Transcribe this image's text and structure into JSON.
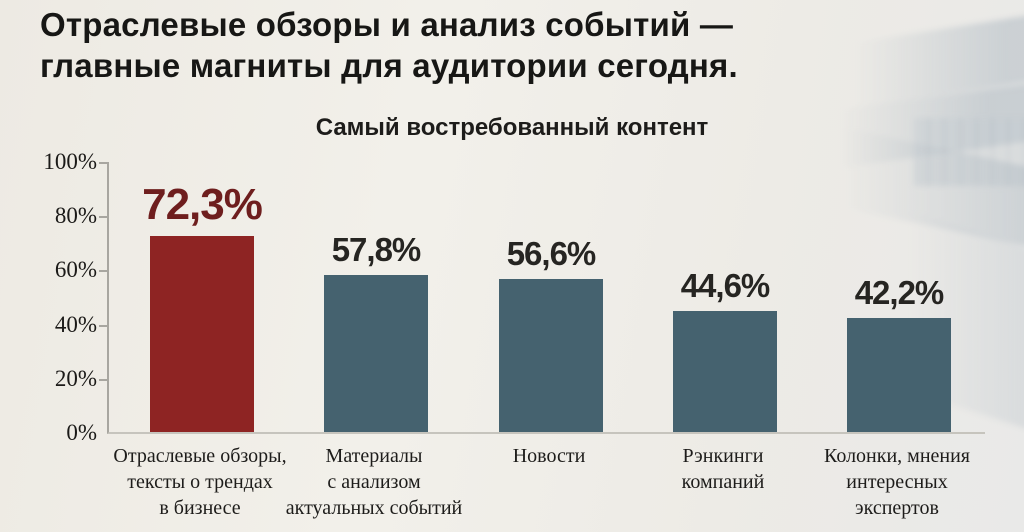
{
  "header": {
    "title_line1": "Отраслевые обзоры и анализ событий —",
    "title_line2": "главные магниты для аудитории сегодня."
  },
  "chart_data": {
    "type": "bar",
    "title": "Самый востребованный контент",
    "categories": [
      [
        "Отраслевые обзоры,",
        "тексты о трендах",
        "в бизнесе"
      ],
      [
        "Материалы",
        "с анализом",
        "актуальных событий"
      ],
      [
        "Новости"
      ],
      [
        "Рэнкинги",
        "компаний"
      ],
      [
        "Колонки, мнения",
        "интересных",
        "экспертов"
      ]
    ],
    "values": [
      72.3,
      57.8,
      56.6,
      44.6,
      42.2
    ],
    "value_labels": [
      "72,3%",
      "57,8%",
      "56,6%",
      "44,6%",
      "42,2%"
    ],
    "highlight_index": 0,
    "ylim": [
      0,
      100
    ],
    "yticks": [
      0,
      20,
      40,
      60,
      80,
      100
    ],
    "ytick_labels": [
      "0%",
      "20%",
      "40%",
      "60%",
      "80%",
      "100%"
    ],
    "grid": false,
    "legend": false,
    "xlabel": "",
    "ylabel": "",
    "colors": {
      "bar": "#45626f",
      "highlight_bar": "#8e2423",
      "value_text": "#262522",
      "highlight_value_text": "#6e1e1e",
      "axis_text": "#1b1a18",
      "title_text": "#171715",
      "background": "#efede8"
    }
  }
}
